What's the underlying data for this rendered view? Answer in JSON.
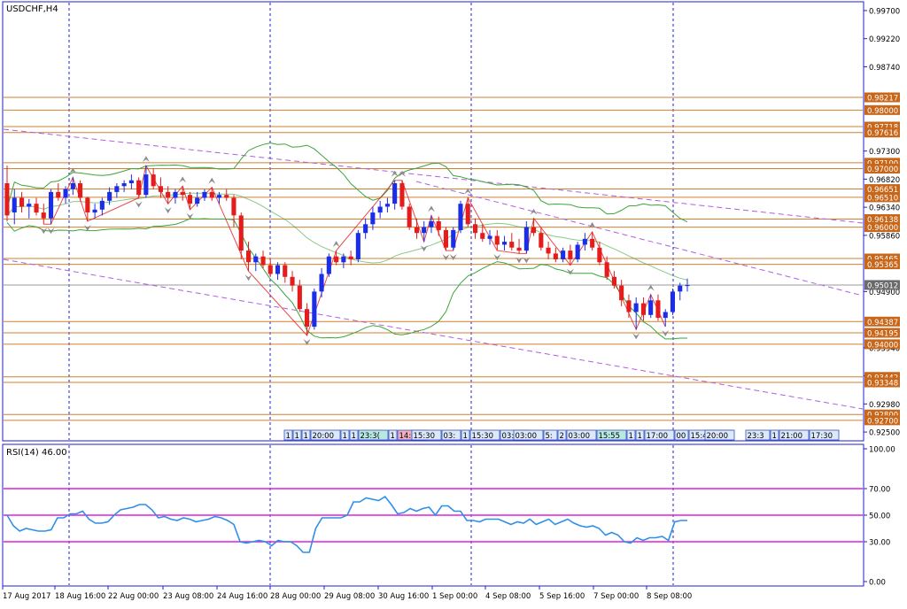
{
  "symbol_label": "USDCHF,H4",
  "rsi_label": "RSI(14) 46.00",
  "colors": {
    "frame": "#1f1fd0",
    "bull": "#1a2ee8",
    "bear": "#e41c1c",
    "level_line": "#d08030",
    "level_box": "#c8661a",
    "band": "#3aa53a",
    "channel": "#b05ee0",
    "rsi_line": "#2f8fe8",
    "rsi_level": "#e020e0",
    "price_box": "#6a6a6a"
  },
  "chart_data": [
    {
      "type": "candlestick",
      "title": "USDCHF,H4",
      "price_axis_ticks": [
        "0.99700",
        "0.99220",
        "0.98740",
        "0.97300",
        "0.96820",
        "0.96340",
        "0.95860",
        "0.94900",
        "0.93940",
        "0.93460",
        "0.92980",
        "0.92500"
      ],
      "ylim": [
        0.9235,
        0.9985
      ],
      "x_labels": [
        "17 Aug 2017",
        "18 Aug 16:00",
        "22 Aug 00:00",
        "23 Aug 08:00",
        "24 Aug 16:00",
        "28 Aug 00:00",
        "29 Aug 08:00",
        "30 Aug 16:00",
        "1 Sep 00:00",
        "4 Sep 08:00",
        "5 Sep 16:00",
        "7 Sep 00:00",
        "8 Sep 08:00"
      ],
      "level_labels": [
        "0.98217",
        "0.98000",
        "0.97718",
        "0.97616",
        "0.97100",
        "0.97000",
        "0.96651",
        "0.96510",
        "0.96138",
        "0.96000",
        "0.95465",
        "0.95365",
        "0.94387",
        "0.94195",
        "0.94000",
        "0.93442",
        "0.93348",
        "0.92800",
        "0.92700"
      ],
      "current_price": "0.95012",
      "event_tags": [
        "1",
        "1",
        "1",
        "20:00",
        "1",
        "1",
        "23:3(",
        "1",
        "14:00",
        "15:30",
        "03:",
        "1",
        "15:30",
        "03:00",
        "03:00",
        "5:",
        "2",
        "03:00",
        "15:55",
        "1",
        "1",
        "17:00",
        "00",
        "15:45",
        "30",
        "20:00",
        "23:3",
        "1",
        "21:00",
        "17:30"
      ],
      "candles": [
        [
          0.9675,
          0.9705,
          0.961,
          0.962
        ],
        [
          0.9625,
          0.9665,
          0.9605,
          0.965
        ],
        [
          0.965,
          0.966,
          0.9625,
          0.9635
        ],
        [
          0.9635,
          0.9648,
          0.9615,
          0.964
        ],
        [
          0.964,
          0.965,
          0.962,
          0.9625
        ],
        [
          0.9625,
          0.964,
          0.9605,
          0.9615
        ],
        [
          0.9615,
          0.9665,
          0.9605,
          0.966
        ],
        [
          0.966,
          0.9675,
          0.9645,
          0.965
        ],
        [
          0.965,
          0.967,
          0.964,
          0.9665
        ],
        [
          0.9665,
          0.9685,
          0.9655,
          0.9675
        ],
        [
          0.9675,
          0.968,
          0.9645,
          0.965
        ],
        [
          0.965,
          0.9652,
          0.961,
          0.9625
        ],
        [
          0.9625,
          0.964,
          0.9615,
          0.963
        ],
        [
          0.963,
          0.965,
          0.962,
          0.9645
        ],
        [
          0.9645,
          0.9668,
          0.9638,
          0.966
        ],
        [
          0.966,
          0.9675,
          0.965,
          0.967
        ],
        [
          0.967,
          0.968,
          0.966,
          0.9675
        ],
        [
          0.9675,
          0.969,
          0.9665,
          0.968
        ],
        [
          0.968,
          0.9685,
          0.965,
          0.9655
        ],
        [
          0.9655,
          0.9705,
          0.965,
          0.969
        ],
        [
          0.969,
          0.97,
          0.9665,
          0.967
        ],
        [
          0.967,
          0.9685,
          0.965,
          0.966
        ],
        [
          0.966,
          0.967,
          0.964,
          0.965
        ],
        [
          0.965,
          0.9665,
          0.964,
          0.966
        ],
        [
          0.966,
          0.967,
          0.9645,
          0.9655
        ],
        [
          0.9655,
          0.966,
          0.963,
          0.964
        ],
        [
          0.964,
          0.966,
          0.9635,
          0.965
        ],
        [
          0.965,
          0.9665,
          0.9645,
          0.966
        ],
        [
          0.966,
          0.9668,
          0.9645,
          0.965
        ],
        [
          0.965,
          0.966,
          0.964,
          0.9655
        ],
        [
          0.9655,
          0.9665,
          0.9645,
          0.965
        ],
        [
          0.965,
          0.9655,
          0.96,
          0.962
        ],
        [
          0.962,
          0.9625,
          0.9545,
          0.956
        ],
        [
          0.956,
          0.9575,
          0.9525,
          0.954
        ],
        [
          0.954,
          0.9555,
          0.9525,
          0.955
        ],
        [
          0.955,
          0.956,
          0.953,
          0.9535
        ],
        [
          0.9535,
          0.9545,
          0.9515,
          0.952
        ],
        [
          0.952,
          0.954,
          0.951,
          0.9535
        ],
        [
          0.9535,
          0.954,
          0.9505,
          0.9515
        ],
        [
          0.9515,
          0.9525,
          0.949,
          0.95
        ],
        [
          0.95,
          0.951,
          0.9455,
          0.946
        ],
        [
          0.946,
          0.947,
          0.9415,
          0.943
        ],
        [
          0.943,
          0.9495,
          0.9425,
          0.949
        ],
        [
          0.949,
          0.953,
          0.948,
          0.952
        ],
        [
          0.952,
          0.9555,
          0.9515,
          0.955
        ],
        [
          0.955,
          0.956,
          0.9535,
          0.954
        ],
        [
          0.954,
          0.9555,
          0.953,
          0.955
        ],
        [
          0.955,
          0.956,
          0.9535,
          0.9545
        ],
        [
          0.9545,
          0.9595,
          0.954,
          0.959
        ],
        [
          0.959,
          0.9615,
          0.958,
          0.9605
        ],
        [
          0.9605,
          0.9635,
          0.9595,
          0.9625
        ],
        [
          0.9625,
          0.9645,
          0.9615,
          0.9635
        ],
        [
          0.9635,
          0.965,
          0.9625,
          0.964
        ],
        [
          0.964,
          0.968,
          0.963,
          0.9675
        ],
        [
          0.9675,
          0.968,
          0.963,
          0.9635
        ],
        [
          0.9635,
          0.964,
          0.9595,
          0.96
        ],
        [
          0.96,
          0.9615,
          0.958,
          0.959
        ],
        [
          0.959,
          0.961,
          0.9575,
          0.96
        ],
        [
          0.96,
          0.962,
          0.959,
          0.961
        ],
        [
          0.961,
          0.9618,
          0.9585,
          0.9595
        ],
        [
          0.9595,
          0.96,
          0.956,
          0.9565
        ],
        [
          0.9565,
          0.96,
          0.956,
          0.9595
        ],
        [
          0.9595,
          0.9645,
          0.959,
          0.964
        ],
        [
          0.964,
          0.965,
          0.96,
          0.9605
        ],
        [
          0.9605,
          0.9615,
          0.958,
          0.959
        ],
        [
          0.959,
          0.9605,
          0.9575,
          0.958
        ],
        [
          0.958,
          0.9595,
          0.957,
          0.9585
        ],
        [
          0.9585,
          0.9595,
          0.956,
          0.957
        ],
        [
          0.957,
          0.9585,
          0.956,
          0.9575
        ],
        [
          0.9575,
          0.959,
          0.956,
          0.9565
        ],
        [
          0.9565,
          0.958,
          0.9555,
          0.956
        ],
        [
          0.956,
          0.961,
          0.9555,
          0.96
        ],
        [
          0.96,
          0.9615,
          0.9585,
          0.959
        ],
        [
          0.959,
          0.96,
          0.956,
          0.9565
        ],
        [
          0.9565,
          0.9575,
          0.9545,
          0.9555
        ],
        [
          0.9555,
          0.9565,
          0.954,
          0.9545
        ],
        [
          0.9545,
          0.9565,
          0.954,
          0.956
        ],
        [
          0.956,
          0.957,
          0.9535,
          0.9545
        ],
        [
          0.9545,
          0.9575,
          0.954,
          0.957
        ],
        [
          0.957,
          0.959,
          0.956,
          0.958
        ],
        [
          0.958,
          0.9592,
          0.956,
          0.9565
        ],
        [
          0.9565,
          0.9575,
          0.9535,
          0.954
        ],
        [
          0.954,
          0.955,
          0.951,
          0.9515
        ],
        [
          0.9515,
          0.9525,
          0.9495,
          0.95
        ],
        [
          0.95,
          0.951,
          0.9465,
          0.9475
        ],
        [
          0.9475,
          0.9485,
          0.9445,
          0.9455
        ],
        [
          0.9455,
          0.948,
          0.9425,
          0.947
        ],
        [
          0.947,
          0.948,
          0.944,
          0.945
        ],
        [
          0.945,
          0.9485,
          0.9445,
          0.9475
        ],
        [
          0.9475,
          0.9485,
          0.944,
          0.9445
        ],
        [
          0.9445,
          0.946,
          0.943,
          0.9455
        ],
        [
          0.9455,
          0.9495,
          0.945,
          0.949
        ],
        [
          0.949,
          0.9505,
          0.9475,
          0.95
        ],
        [
          0.95,
          0.9512,
          0.949,
          0.9501
        ]
      ],
      "rsi": {
        "title": "RSI(14) 46.00",
        "ylim": [
          0,
          100
        ],
        "ticks": [
          "100.00",
          "70.00",
          "50.00",
          "30.00",
          "0.00"
        ],
        "levels": [
          70,
          50,
          30
        ],
        "values": [
          50,
          42,
          38,
          40,
          39,
          38,
          38,
          39,
          48,
          48,
          51,
          51,
          53,
          47,
          44,
          44,
          45,
          50,
          54,
          55,
          56,
          58,
          58,
          54,
          48,
          49,
          47,
          46,
          48,
          47,
          45,
          46,
          47,
          49,
          48,
          46,
          43,
          30,
          29,
          30,
          31,
          30,
          27,
          31,
          30,
          30,
          27,
          22,
          22,
          40,
          48,
          48,
          48,
          48,
          50,
          60,
          60,
          63,
          62,
          61,
          64,
          58,
          51,
          52,
          55,
          53,
          55,
          56,
          50,
          57,
          57,
          53,
          53,
          46,
          46,
          45,
          47,
          47,
          47,
          45,
          43,
          45,
          44,
          47,
          43,
          45,
          47,
          43,
          45,
          47,
          44,
          42,
          41,
          42,
          40,
          35,
          37,
          35,
          30,
          29,
          33,
          31,
          33,
          33,
          34,
          31,
          45,
          46,
          46
        ]
      }
    }
  ]
}
